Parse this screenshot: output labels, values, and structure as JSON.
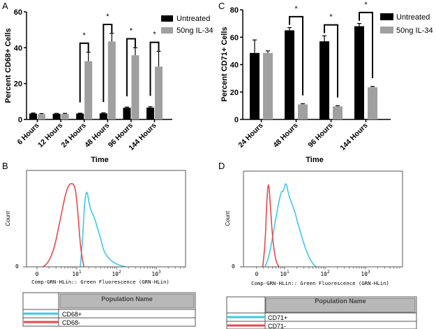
{
  "panel_letters": [
    "A",
    "B",
    "C",
    "D"
  ],
  "chart_data": [
    {
      "panel": "A",
      "type": "bar",
      "title": "",
      "xlabel": "Time",
      "ylabel": "Percent CD68+ Cells",
      "ylim": [
        0,
        60
      ],
      "yticks": [
        "0",
        "20",
        "40",
        "60"
      ],
      "categories": [
        "6 Hours",
        "12 Hours",
        "24 Hours",
        "48 Hours",
        "96 Hours",
        "144 Hours"
      ],
      "series": [
        {
          "name": "Untreated",
          "color": "#000000",
          "values": [
            3.3,
            3.2,
            3.3,
            3.4,
            6.5,
            6.6
          ],
          "errors": [
            0.3,
            0.2,
            0.2,
            0.3,
            0.4,
            0.5
          ]
        },
        {
          "name": "50ng IL-34",
          "color": "#a0a0a0",
          "values": [
            3.0,
            3.1,
            32.5,
            43.5,
            35.8,
            29.5
          ],
          "errors": [
            0.3,
            0.3,
            5.0,
            4.5,
            4.2,
            8.5
          ]
        }
      ],
      "significance": [
        "",
        "",
        "*",
        "*",
        "*",
        "*"
      ],
      "legend_position": "top-right"
    },
    {
      "panel": "C",
      "type": "bar",
      "title": "",
      "xlabel": "Time",
      "ylabel": "Percent CD71+ Cells",
      "ylim": [
        0,
        80
      ],
      "yticks": [
        "0",
        "20",
        "40",
        "60",
        "80"
      ],
      "categories": [
        "24 Hours",
        "48 Hours",
        "96 Hours",
        "144 Hours"
      ],
      "series": [
        {
          "name": "Untreated",
          "color": "#000000",
          "values": [
            48.5,
            65,
            57,
            68
          ],
          "errors": [
            9.5,
            2,
            4,
            2
          ]
        },
        {
          "name": "50ng IL-34",
          "color": "#a0a0a0",
          "values": [
            48.5,
            11,
            9.5,
            23.5
          ],
          "errors": [
            1.5,
            0.5,
            0.5,
            0.6
          ]
        }
      ],
      "significance": [
        "",
        "*",
        "*",
        "*"
      ],
      "legend_position": "top-right"
    },
    {
      "panel": "B",
      "type": "line",
      "xlabel": "Comp-GRN-HLin:: Green Fluorescence (GRN-HLin)",
      "ylabel": "Count",
      "y_tick": "0",
      "xticks": [
        {
          "label": "0",
          "exp": ""
        },
        {
          "label": "10",
          "exp": "1"
        },
        {
          "label": "10",
          "exp": "2"
        },
        {
          "label": "10",
          "exp": "3"
        }
      ],
      "x_units": "log10 decades",
      "legend_header": "Population Name",
      "series": [
        {
          "name": "CD68+",
          "color": "#3cc8e8",
          "points": [
            [
              1.09,
              0
            ],
            [
              1.15,
              0.3
            ],
            [
              1.2,
              0.7
            ],
            [
              1.26,
              0.8
            ],
            [
              1.3,
              0.68
            ],
            [
              1.36,
              0.58
            ],
            [
              1.44,
              0.52
            ],
            [
              1.52,
              0.4
            ],
            [
              1.6,
              0.3
            ],
            [
              1.68,
              0.16
            ],
            [
              1.78,
              0.1
            ],
            [
              1.9,
              0.05
            ],
            [
              2.05,
              0.02
            ],
            [
              2.23,
              0
            ]
          ]
        },
        {
          "name": "CD68-",
          "color": "#e8484c",
          "points": [
            [
              0.15,
              0
            ],
            [
              0.25,
              0.03
            ],
            [
              0.35,
              0.1
            ],
            [
              0.45,
              0.22
            ],
            [
              0.55,
              0.42
            ],
            [
              0.65,
              0.62
            ],
            [
              0.72,
              0.76
            ],
            [
              0.8,
              0.85
            ],
            [
              0.88,
              0.87
            ],
            [
              0.95,
              0.84
            ],
            [
              1.0,
              0.7
            ],
            [
              1.05,
              0.45
            ],
            [
              1.1,
              0.18
            ],
            [
              1.18,
              0
            ]
          ]
        }
      ]
    },
    {
      "panel": "D",
      "type": "line",
      "xlabel": "Comp-GRN-HLin:: Green Fluorescence (GRN-HLin)",
      "ylabel": "Count",
      "y_tick": "0",
      "xticks": [
        {
          "label": "0",
          "exp": ""
        },
        {
          "label": "10",
          "exp": "1"
        },
        {
          "label": "10",
          "exp": "2"
        },
        {
          "label": "10",
          "exp": "3"
        }
      ],
      "x_units": "log10 decades",
      "legend_header": "Population Name",
      "series": [
        {
          "name": "CD71+",
          "color": "#3cc8e8",
          "points": [
            [
              0.52,
              0
            ],
            [
              0.62,
              0.12
            ],
            [
              0.72,
              0.35
            ],
            [
              0.82,
              0.6
            ],
            [
              0.92,
              0.8
            ],
            [
              0.97,
              0.78
            ],
            [
              1.03,
              0.9
            ],
            [
              1.1,
              0.75
            ],
            [
              1.17,
              0.67
            ],
            [
              1.25,
              0.58
            ],
            [
              1.33,
              0.45
            ],
            [
              1.42,
              0.32
            ],
            [
              1.5,
              0.21
            ],
            [
              1.6,
              0.1
            ],
            [
              1.7,
              0.03
            ],
            [
              1.78,
              0
            ]
          ]
        },
        {
          "name": "CD71-",
          "color": "#e8484c",
          "points": [
            [
              0.46,
              0
            ],
            [
              0.52,
              0.25
            ],
            [
              0.56,
              0.7
            ],
            [
              0.6,
              0.91
            ],
            [
              0.64,
              0.7
            ],
            [
              0.7,
              0.3
            ],
            [
              0.78,
              0.06
            ],
            [
              0.86,
              0
            ]
          ]
        }
      ]
    }
  ]
}
